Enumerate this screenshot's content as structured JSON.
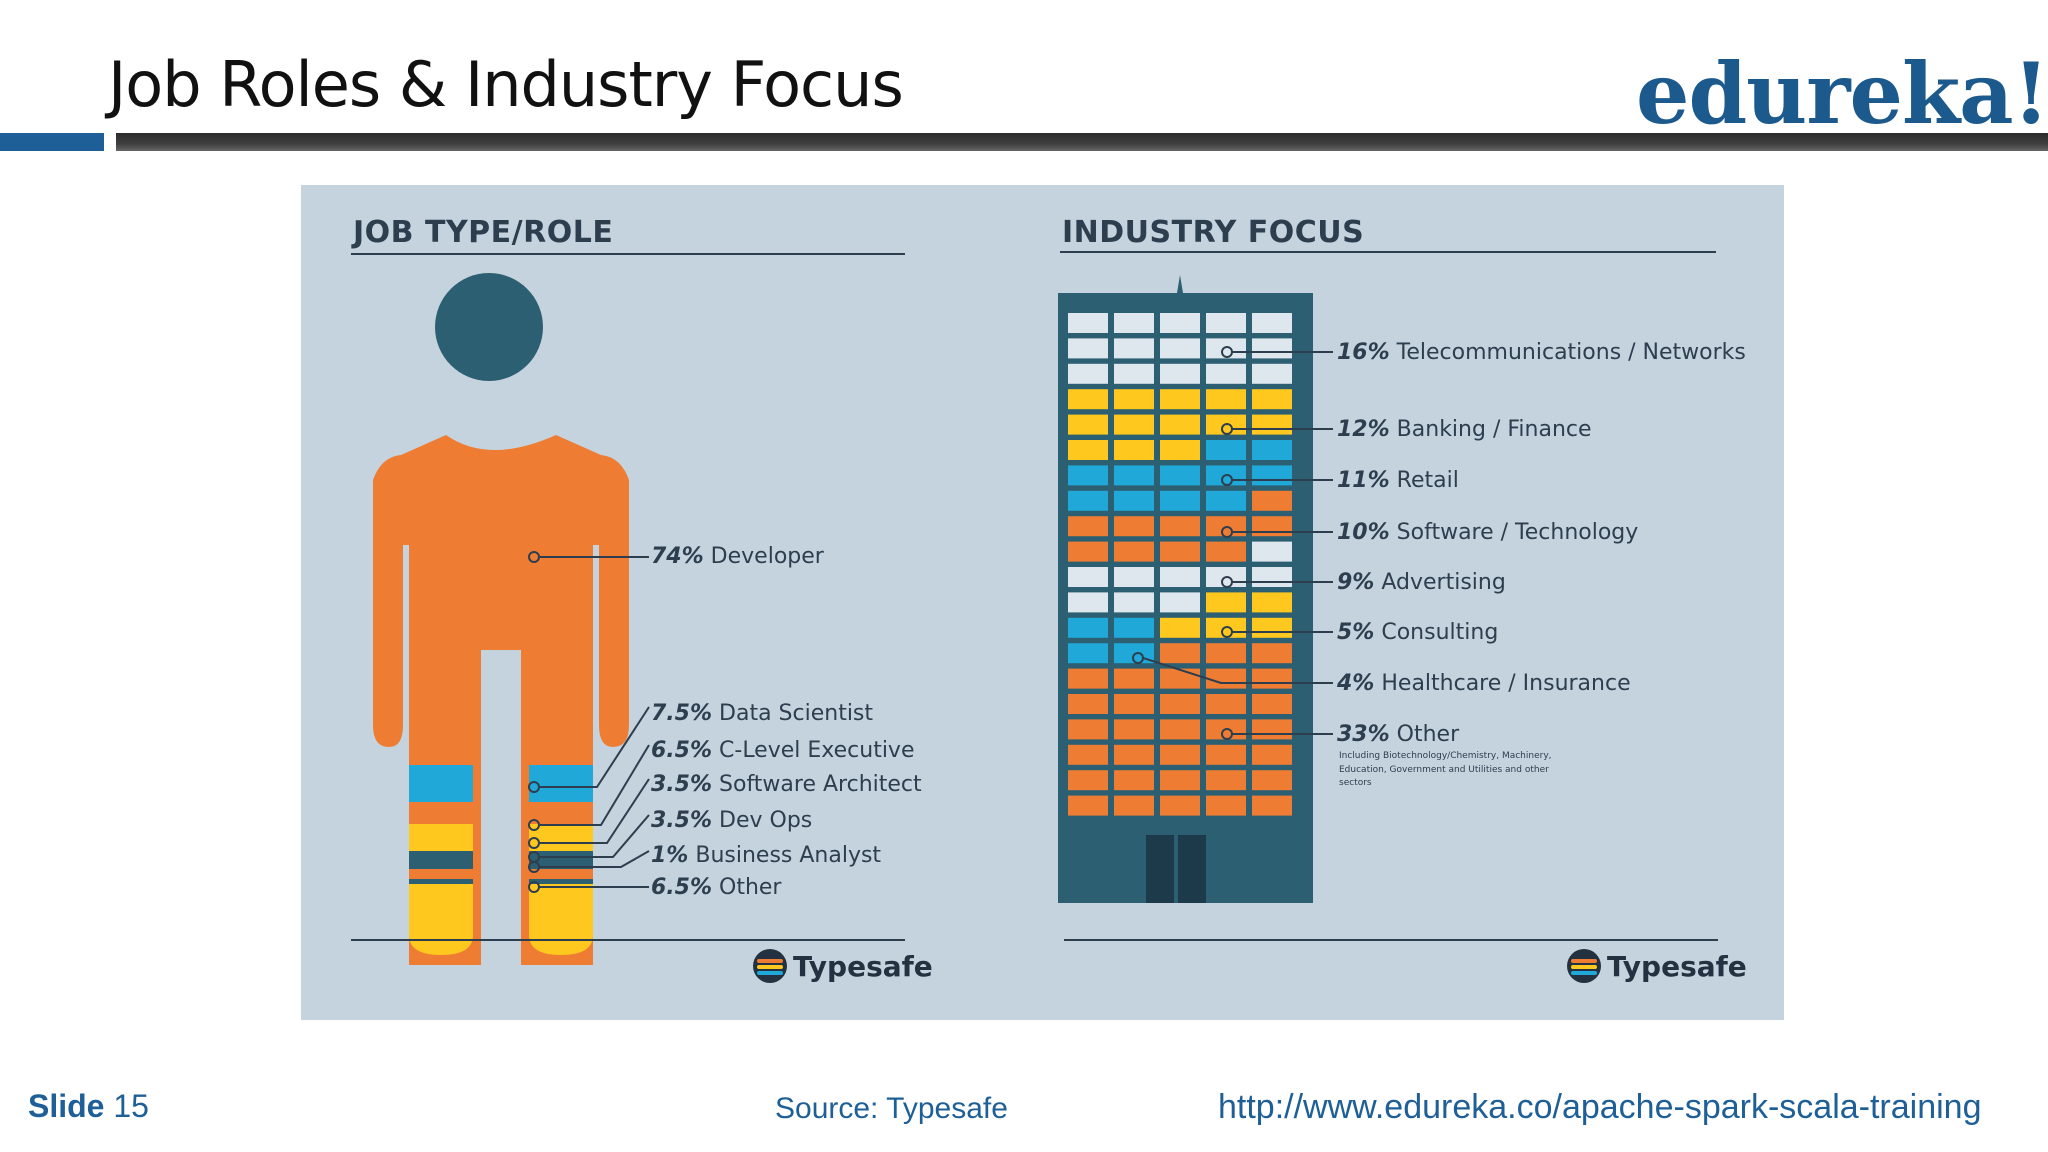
{
  "slide": {
    "title": "Job Roles & Industry Focus",
    "logo_text": "edureka!",
    "footer": {
      "slide_label": "Slide",
      "slide_number": "15",
      "source": "Source: Typesafe",
      "url": "http://www.edureka.co/apache-spark-scala-training"
    }
  },
  "job_panel": {
    "heading": "JOB TYPE/ROLE",
    "brand": "Typesafe",
    "roles": [
      {
        "percent": "74%",
        "label": "Developer",
        "value": 74
      },
      {
        "percent": "7.5%",
        "label": "Data Scientist",
        "value": 7.5
      },
      {
        "percent": "6.5%",
        "label": "C-Level Executive",
        "value": 6.5
      },
      {
        "percent": "3.5%",
        "label": "Software Architect",
        "value": 3.5
      },
      {
        "percent": "3.5%",
        "label": "Dev Ops",
        "value": 3.5
      },
      {
        "percent": "1%",
        "label": "Business Analyst",
        "value": 1
      },
      {
        "percent": "6.5%",
        "label": "Other",
        "value": 6.5
      }
    ]
  },
  "industry_panel": {
    "heading": "INDUSTRY FOCUS",
    "brand": "Typesafe",
    "other_note": "Including Biotechnology/Chemistry, Machinery, Education, Government and Utilities and other sectors",
    "industries": [
      {
        "percent": "16%",
        "label": "Telecommunications / Networks",
        "value": 16
      },
      {
        "percent": "12%",
        "label": "Banking / Finance",
        "value": 12
      },
      {
        "percent": "11%",
        "label": "Retail",
        "value": 11
      },
      {
        "percent": "10%",
        "label": "Software / Technology",
        "value": 10
      },
      {
        "percent": "9%",
        "label": "Advertising",
        "value": 9
      },
      {
        "percent": "5%",
        "label": "Consulting",
        "value": 5
      },
      {
        "percent": "4%",
        "label": "Healthcare / Insurance",
        "value": 4
      },
      {
        "percent": "33%",
        "label": "Other",
        "value": 33
      }
    ]
  },
  "colors": {
    "orange": "#ee7d33",
    "blue": "#20a8d8",
    "yellow": "#ffc81e",
    "light": "#dfe7ee",
    "dark": "#2d5f72",
    "ink": "#2d3e4e"
  }
}
